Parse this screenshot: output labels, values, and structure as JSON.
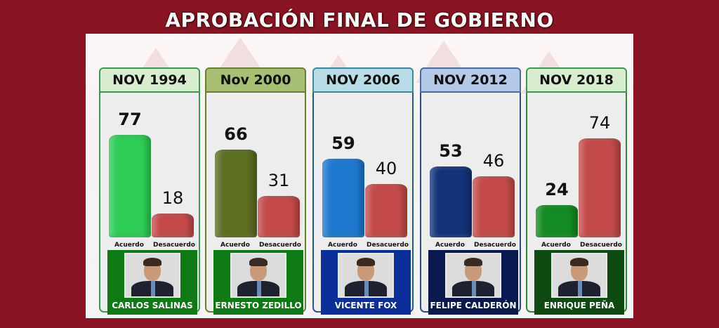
{
  "title": "APROBACIÓN FINAL DE GOBIERNO",
  "chart_data": {
    "type": "bar",
    "categories": [
      "NOV 1994",
      "Nov 2000",
      "NOV 2006",
      "NOV 2012",
      "NOV 2018"
    ],
    "bar_labels": [
      "Acuerdo",
      "Desacuerdo"
    ],
    "presidents": [
      "CARLOS SALINAS",
      "ERNESTO ZEDILLO",
      "VICENTE FOX",
      "FELIPE CALDERÓN",
      "ENRIQUE PEÑA"
    ],
    "series": [
      {
        "name": "Acuerdo",
        "values": [
          77,
          66,
          59,
          53,
          24
        ]
      },
      {
        "name": "Desacuerdo",
        "values": [
          18,
          31,
          40,
          46,
          74
        ]
      }
    ],
    "ylim": [
      0,
      100
    ],
    "grid": false,
    "legend": "none"
  },
  "colors": {
    "background": "#8a1424",
    "desacuerdo_bar": "#c44a4a",
    "acuerdo_bars": [
      "#2ecc55",
      "#5b6e22",
      "#1f78cf",
      "#13337a",
      "#138a23"
    ],
    "headers": [
      "#d8ecd0",
      "#a6bf72",
      "#b8dde6",
      "#b4c8e8",
      "#d8ecd0"
    ],
    "header_borders": [
      "#3a9a50",
      "#6b7e30",
      "#3a8aa0",
      "#4a6aa0",
      "#3a9a50"
    ],
    "column_borders": [
      "#3a9a50",
      "#6b7e30",
      "#1f5a9a",
      "#2a4a8a",
      "#2a8a3a"
    ],
    "name_boxes": [
      "#0e7a14",
      "#0e7a14",
      "#0a2e9a",
      "#0a1850",
      "#0e4a12"
    ]
  }
}
